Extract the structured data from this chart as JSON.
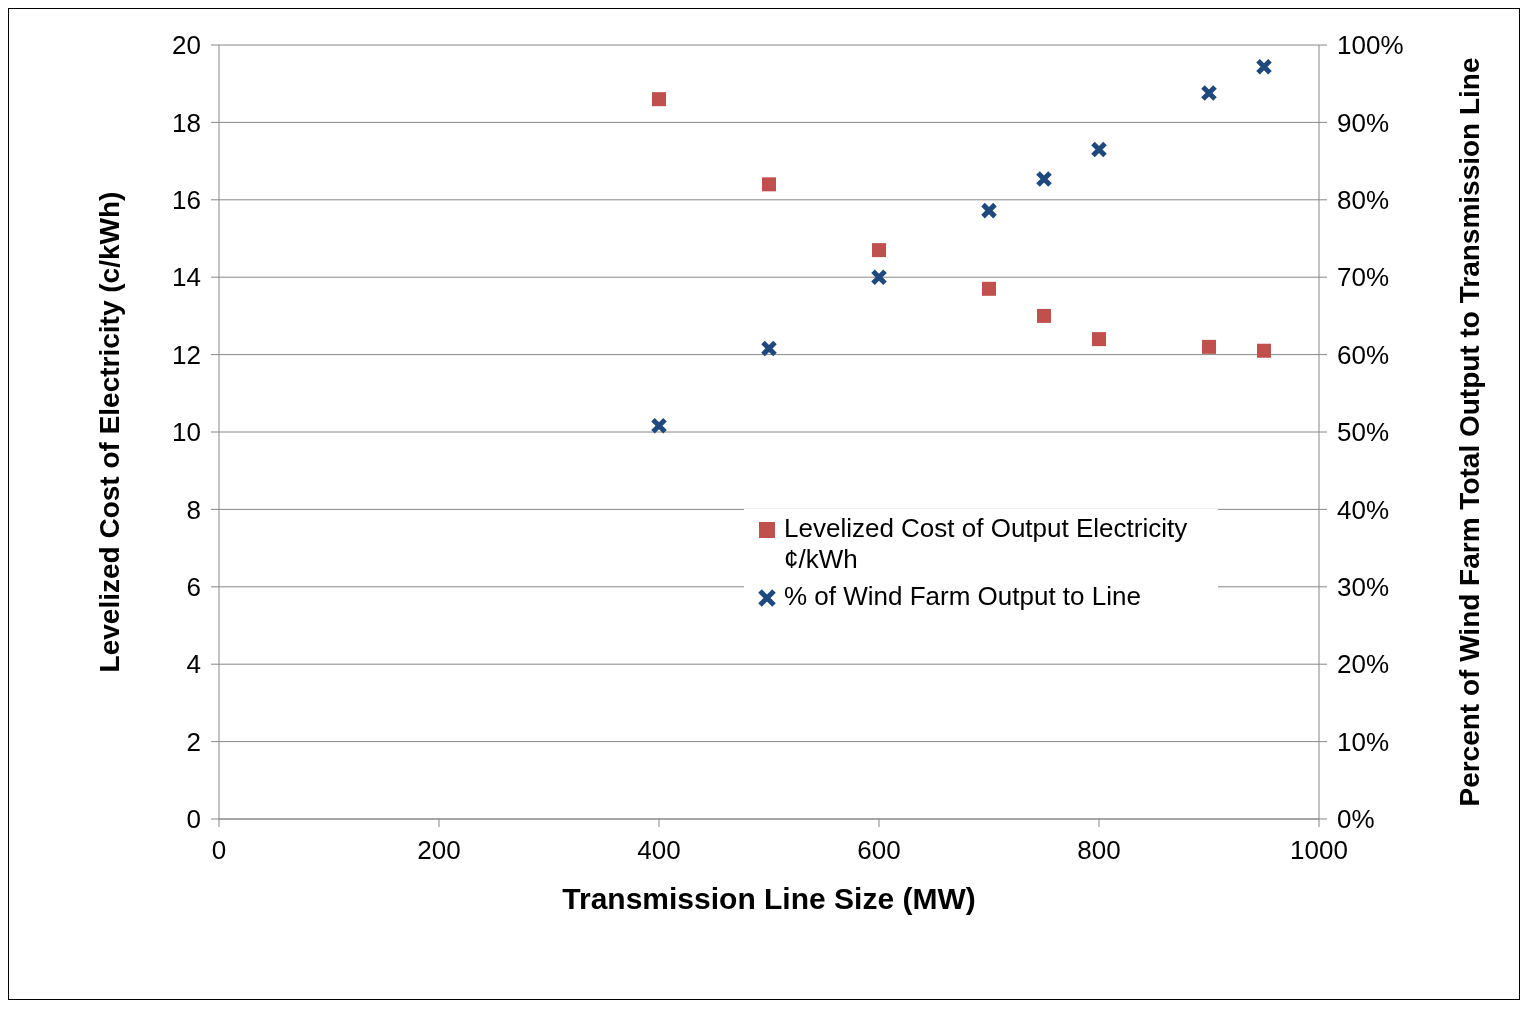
{
  "chart_data": {
    "type": "scatter",
    "xlabel": "Transmission  Line Size (MW)",
    "ylabel": "Levelized Cost of Electricity (c/kWh)",
    "y2label": "Percent of Wind Farm Total Output to Transmission Line",
    "x": [
      400,
      500,
      600,
      700,
      750,
      800,
      900,
      950
    ],
    "series": [
      {
        "name": "Levelized Cost of Output Electricity ¢/kWh",
        "color": "#c0504d",
        "marker": "square",
        "values": [
          18.6,
          16.4,
          14.7,
          13.7,
          13.0,
          12.4,
          12.2,
          12.1
        ]
      },
      {
        "name": "% of Wind Farm Output to Line",
        "color": "#1f497d",
        "marker": "cross",
        "axis": "y2",
        "values": [
          50.8,
          60.8,
          70.0,
          78.6,
          82.7,
          86.5,
          93.8,
          97.2
        ]
      }
    ],
    "xlim": [
      0,
      1000
    ],
    "xticks": [
      0,
      200,
      400,
      600,
      800,
      1000
    ],
    "ylim": [
      0,
      20
    ],
    "yticks": [
      0,
      2,
      4,
      6,
      8,
      10,
      12,
      14,
      16,
      18,
      20
    ],
    "y2lim": [
      0,
      100
    ],
    "y2ticks": [
      {
        "value": 0,
        "label": "0%"
      },
      {
        "value": 10,
        "label": "10%"
      },
      {
        "value": 20,
        "label": "20%"
      },
      {
        "value": 30,
        "label": "30%"
      },
      {
        "value": 40,
        "label": "40%"
      },
      {
        "value": 50,
        "label": "50%"
      },
      {
        "value": 60,
        "label": "60%"
      },
      {
        "value": 70,
        "label": "70%"
      },
      {
        "value": 80,
        "label": "80%"
      },
      {
        "value": 90,
        "label": "90%"
      },
      {
        "value": 100,
        "label": "100%"
      }
    ],
    "grid": "y",
    "legend": "right"
  }
}
